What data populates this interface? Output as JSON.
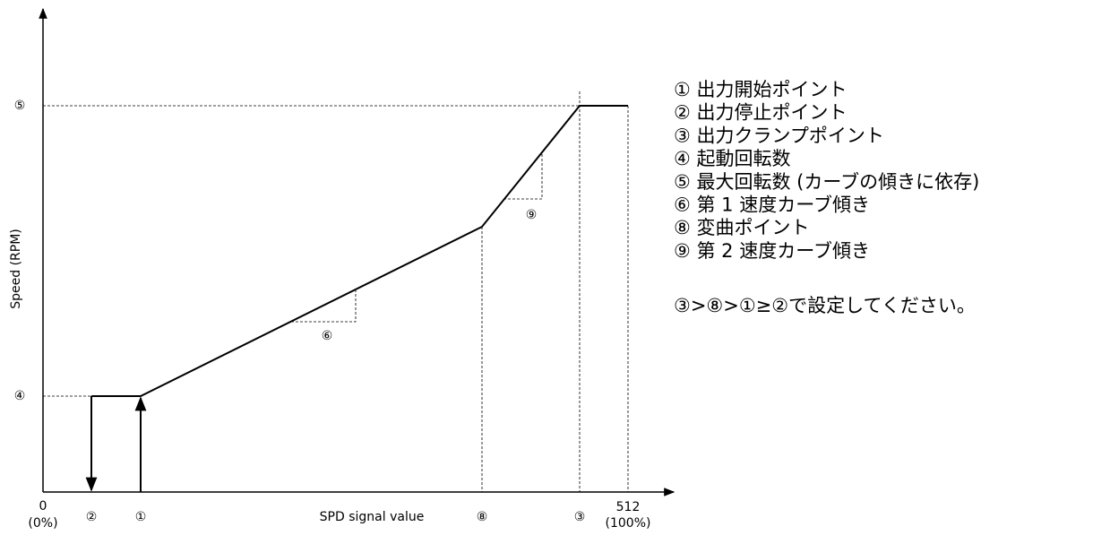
{
  "diagram": {
    "y_axis_label": "Speed (RPM)",
    "x_axis_label": "SPD signal value",
    "y_markers": [
      "⑤",
      "④"
    ],
    "x_origin": {
      "value": "0",
      "percent": "(0%)"
    },
    "x_markers": [
      "②",
      "①",
      "⑧",
      "③"
    ],
    "x_end": {
      "value": "512",
      "percent": "(100%)"
    },
    "slope_labels": [
      "⑥",
      "⑨"
    ],
    "legend": [
      "① 出力開始ポイント",
      "② 出力停止ポイント",
      "③ 出力クランプポイント",
      "④ 起動回転数",
      "⑤ 最大回転数 (カーブの傾きに依存)",
      "⑥ 第 1 速度カーブ傾き",
      "⑧ 変曲ポイント",
      "⑨ 第 2 速度カーブ傾き"
    ],
    "note": "③>⑧>①≥②で設定してください。"
  }
}
